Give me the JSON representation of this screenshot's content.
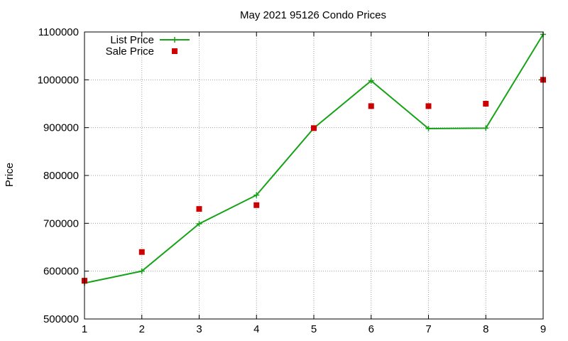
{
  "chart_data": {
    "type": "line",
    "title": "May 2021 95126 Condo Prices",
    "xlabel": "",
    "ylabel": "Price",
    "x": [
      1,
      2,
      3,
      4,
      5,
      6,
      7,
      8,
      9
    ],
    "xlim": [
      1,
      9
    ],
    "ylim": [
      500000,
      1100000
    ],
    "xticks": [
      "1",
      "2",
      "3",
      "4",
      "5",
      "6",
      "7",
      "8",
      "9"
    ],
    "yticks": [
      "500000",
      "600000",
      "700000",
      "800000",
      "900000",
      "1000000",
      "1100000"
    ],
    "grid": true,
    "legend_position": "top-left",
    "series": [
      {
        "name": "List Price",
        "style": "line-with-plus-markers",
        "color": "#16a316",
        "values": [
          575000,
          600000,
          699000,
          759000,
          899000,
          998000,
          898000,
          899000,
          1095000
        ]
      },
      {
        "name": "Sale Price",
        "style": "square-markers",
        "color": "#cc0000",
        "values": [
          580000,
          640000,
          730000,
          738000,
          899000,
          945000,
          945000,
          950000,
          1000000
        ]
      }
    ]
  }
}
